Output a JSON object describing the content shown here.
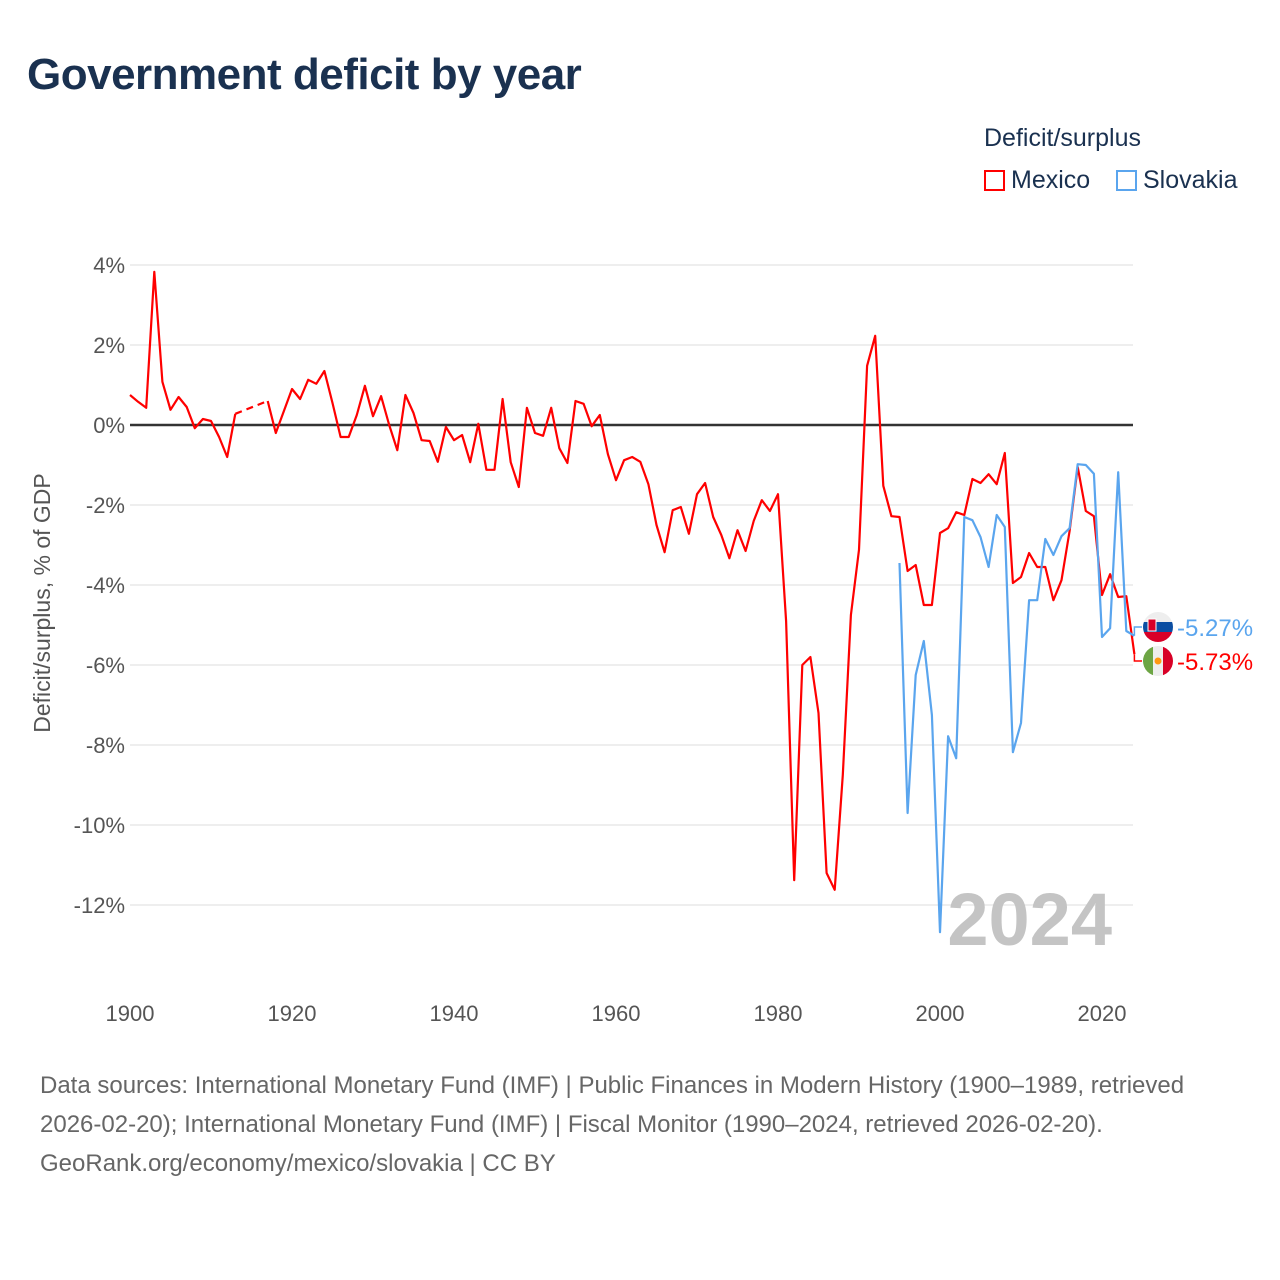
{
  "title": "Government deficit by year",
  "legend": {
    "title": "Deficit/surplus",
    "items": [
      {
        "label": "Mexico",
        "color": "#ff0000"
      },
      {
        "label": "Slovakia",
        "color": "#5aa5ee"
      }
    ]
  },
  "footer": {
    "sources": "Data sources: International Monetary Fund (IMF) | Public Finances in Modern History (1900–1989, retrieved 2026-02-20); International Monetary Fund (IMF) | Fiscal Monitor (1990–2024, retrieved 2026-02-20).",
    "credit": "GeoRank.org/economy/mexico/slovakia | CC BY"
  },
  "chart_data": {
    "type": "line",
    "title": "Government deficit by year",
    "xlabel": "",
    "ylabel": "Deficit/surplus, % of GDP",
    "xlim": [
      1900,
      2024
    ],
    "ylim": [
      -13,
      4
    ],
    "x_ticks": [
      1900,
      1920,
      1940,
      1960,
      1980,
      2000,
      2020
    ],
    "x_tick_labels": [
      "1900",
      "1920",
      "1940",
      "1960",
      "1980",
      "2000",
      "2020"
    ],
    "y_ticks": [
      4,
      2,
      0,
      -2,
      -4,
      -6,
      -8,
      -10,
      -12
    ],
    "y_tick_labels": [
      "4%",
      "2%",
      "0%",
      "-2%",
      "-4%",
      "-6%",
      "-8%",
      "-10%",
      "-12%"
    ],
    "year_watermark": "2024",
    "legend_position": "top-right",
    "series": [
      {
        "name": "Mexico",
        "color": "#ff0000",
        "start_year": 1900,
        "end_label": "-5.73%",
        "values": [
          0.75,
          0.58,
          0.43,
          3.83,
          1.08,
          0.38,
          0.7,
          0.45,
          -0.08,
          0.15,
          0.1,
          -0.3,
          -0.8,
          0.28,
          null,
          null,
          null,
          0.6,
          -0.2,
          0.35,
          0.9,
          0.65,
          1.13,
          1.03,
          1.35,
          0.55,
          -0.3,
          -0.3,
          0.25,
          0.98,
          0.22,
          0.72,
          0,
          -0.63,
          0.75,
          0.3,
          -0.38,
          -0.4,
          -0.92,
          -0.05,
          -0.38,
          -0.25,
          -0.93,
          0.03,
          -1.12,
          -1.12,
          0.65,
          -0.93,
          -1.55,
          0.43,
          -0.2,
          -0.27,
          0.43,
          -0.58,
          -0.95,
          0.6,
          0.53,
          -0.03,
          0.25,
          -0.73,
          -1.38,
          -0.88,
          -0.8,
          -0.92,
          -1.48,
          -2.5,
          -3.18,
          -2.13,
          -2.05,
          -2.72,
          -1.73,
          -1.45,
          -2.3,
          -2.75,
          -3.33,
          -2.63,
          -3.15,
          -2.4,
          -1.88,
          -2.15,
          -1.73,
          -4.9,
          -11.38,
          -6.0,
          -5.8,
          -7.2,
          -11.2,
          -11.62,
          -8.75,
          -4.75,
          -3.12,
          1.48,
          2.23,
          -1.52,
          -2.28,
          -2.3,
          -3.65,
          -3.5,
          -4.5,
          -4.5,
          -2.7,
          -2.58,
          -2.18,
          -2.25,
          -1.35,
          -1.45,
          -1.23,
          -1.48,
          -0.7,
          -3.95,
          -3.8,
          -3.2,
          -3.55,
          -3.55,
          -4.38,
          -3.88,
          -2.65,
          -1.05,
          -2.15,
          -2.28,
          -4.25,
          -3.73,
          -4.3,
          -4.28,
          -5.73
        ]
      },
      {
        "name": "Slovakia",
        "color": "#5aa5ee",
        "start_year": 1995,
        "end_label": "-5.27%",
        "values": [
          -3.45,
          -9.7,
          -6.25,
          -5.4,
          -7.25,
          -12.68,
          -7.78,
          -8.33,
          -2.3,
          -2.38,
          -2.8,
          -3.55,
          -2.25,
          -2.55,
          -8.18,
          -7.45,
          -4.38,
          -4.38,
          -2.85,
          -3.25,
          -2.78,
          -2.58,
          -0.98,
          -1.0,
          -1.22,
          -5.3,
          -5.08,
          -1.18,
          -5.15,
          -5.27
        ]
      }
    ]
  }
}
